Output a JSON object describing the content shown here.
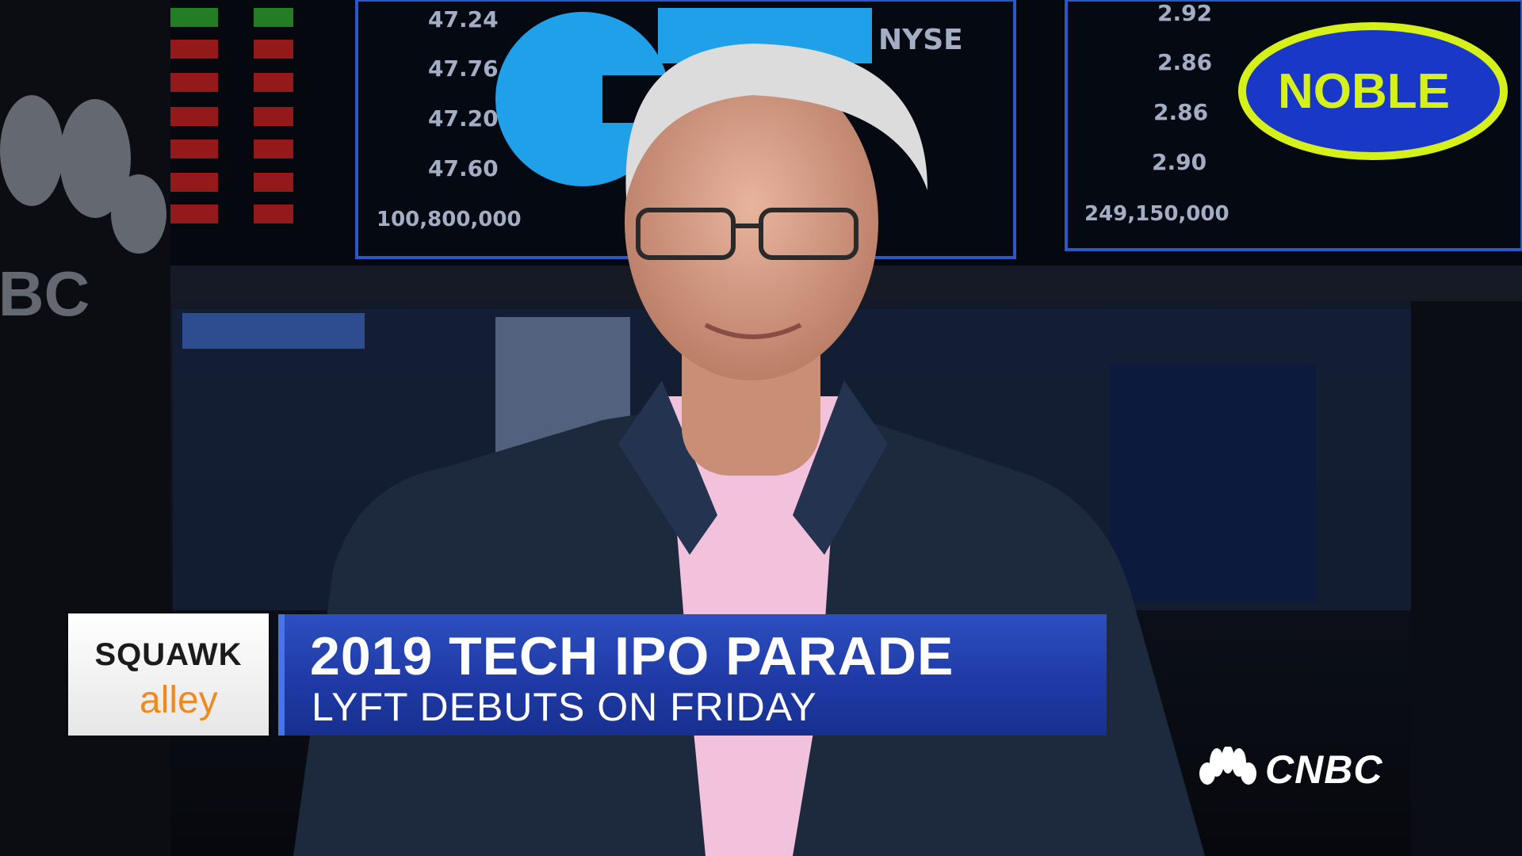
{
  "background": {
    "board_left": {
      "prices": [
        "47.24",
        "47.76",
        "47.20",
        "47.60"
      ],
      "volume": "100,800,000",
      "exchange": "NYSE"
    },
    "board_right": {
      "prices": [
        "2.92",
        "2.86",
        "2.86",
        "2.90"
      ],
      "volume": "249,150,000",
      "logo": "NOBLE"
    },
    "wall_logo": "NBC"
  },
  "lower_third": {
    "show_logo": {
      "top": "SQUAWK",
      "bottom": "alley"
    },
    "headline": "2019 TECH IPO PARADE",
    "subheadline": "LYFT DEBUTS ON FRIDAY"
  },
  "network_logo": "CNBC"
}
